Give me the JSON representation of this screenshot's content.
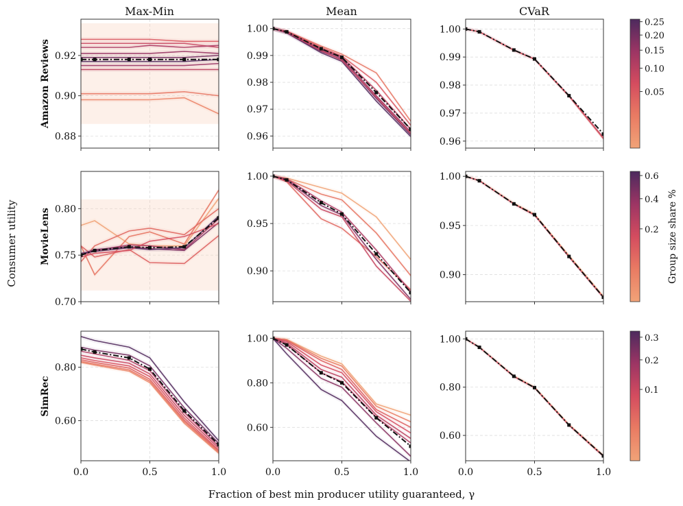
{
  "figure": {
    "xlabel": "Fraction of best min producer utility guaranteed, γ",
    "ylabel": "Consumer utility",
    "colorbar_label": "Group size share %",
    "columns": [
      "Max-Min",
      "Mean",
      "CVaR"
    ],
    "rows": [
      "Amazon Reviews",
      "MovieLens",
      "SimRec"
    ],
    "colors": {
      "light": "#f1a378",
      "mid": "#dc4b5c",
      "dark": "#4d2a5e",
      "mean_line": "#111111"
    }
  },
  "chart_data": [
    {
      "id": "amazon-maxmin",
      "type": "line",
      "row": "Amazon Reviews",
      "col": "Max-Min",
      "xlim": [
        0,
        1
      ],
      "ylim": [
        0.874,
        0.938
      ],
      "yticks": [
        0.88,
        0.9,
        0.92
      ],
      "ytick_labels": [
        "0.88",
        "0.90",
        "0.92"
      ],
      "x": [
        0,
        0.1,
        0.35,
        0.5,
        0.75,
        1.0
      ],
      "mean": [
        0.918,
        0.918,
        0.918,
        0.918,
        0.918,
        0.918
      ],
      "band": [
        0.886,
        0.936
      ],
      "series": [
        {
          "values": [
            0.928,
            0.928,
            0.928,
            0.928,
            0.927,
            0.927
          ],
          "c": 0.05
        },
        {
          "values": [
            0.926,
            0.926,
            0.926,
            0.926,
            0.926,
            0.924
          ],
          "c": 0.08
        },
        {
          "values": [
            0.924,
            0.924,
            0.924,
            0.925,
            0.924,
            0.925
          ],
          "c": 0.12
        },
        {
          "values": [
            0.921,
            0.921,
            0.921,
            0.921,
            0.922,
            0.921
          ],
          "c": 0.15
        },
        {
          "values": [
            0.919,
            0.919,
            0.919,
            0.919,
            0.919,
            0.92
          ],
          "c": 0.2
        },
        {
          "values": [
            0.917,
            0.917,
            0.917,
            0.917,
            0.917,
            0.918
          ],
          "c": 0.25
        },
        {
          "values": [
            0.915,
            0.915,
            0.915,
            0.915,
            0.915,
            0.916
          ],
          "c": 0.15
        },
        {
          "values": [
            0.913,
            0.913,
            0.913,
            0.913,
            0.913,
            0.913
          ],
          "c": 0.1
        },
        {
          "values": [
            0.901,
            0.901,
            0.901,
            0.901,
            0.902,
            0.9
          ],
          "c": 0.02
        },
        {
          "values": [
            0.898,
            0.898,
            0.898,
            0.898,
            0.899,
            0.891
          ],
          "c": 0.01
        }
      ]
    },
    {
      "id": "amazon-mean",
      "type": "line",
      "row": "Amazon Reviews",
      "col": "Mean",
      "xlim": [
        0,
        1
      ],
      "ylim": [
        0.9555,
        1.0035
      ],
      "yticks": [
        0.96,
        0.97,
        0.98,
        0.99,
        1.0
      ],
      "ytick_labels": [
        "0.96",
        "0.97",
        "0.98",
        "0.99",
        "1.00"
      ],
      "x": [
        0,
        0.1,
        0.35,
        0.5,
        0.75,
        1.0
      ],
      "mean": [
        1.0,
        0.9988,
        0.9925,
        0.9893,
        0.9762,
        0.9625
      ],
      "series": [
        {
          "values": [
            1.0,
            0.9991,
            0.9935,
            0.9905,
            0.9835,
            0.9655
          ],
          "c": 0.02
        },
        {
          "values": [
            1.0,
            0.999,
            0.993,
            0.9898,
            0.98,
            0.964
          ],
          "c": 0.05
        },
        {
          "values": [
            1.0,
            0.9988,
            0.9924,
            0.9895,
            0.977,
            0.9625
          ],
          "c": 0.1
        },
        {
          "values": [
            1.0,
            0.9987,
            0.992,
            0.989,
            0.975,
            0.9615
          ],
          "c": 0.15
        },
        {
          "values": [
            1.0,
            0.9985,
            0.9915,
            0.9885,
            0.974,
            0.9605
          ],
          "c": 0.2
        },
        {
          "values": [
            1.0,
            0.9984,
            0.991,
            0.9878,
            0.973,
            0.9598
          ],
          "c": 0.25
        },
        {
          "values": [
            1.0,
            0.9986,
            0.9918,
            0.9882,
            0.9745,
            0.961
          ],
          "c": 0.08
        }
      ]
    },
    {
      "id": "amazon-cvar",
      "type": "line",
      "row": "Amazon Reviews",
      "col": "CVaR",
      "xlim": [
        0,
        1
      ],
      "ylim": [
        0.9575,
        1.0035
      ],
      "yticks": [
        0.96,
        0.97,
        0.98,
        0.99,
        1.0
      ],
      "ytick_labels": [
        "0.96",
        "0.97",
        "0.98",
        "0.99",
        "1.00"
      ],
      "x": [
        0,
        0.1,
        0.35,
        0.5,
        0.75,
        1.0
      ],
      "mean": [
        1.0,
        0.999,
        0.9925,
        0.9893,
        0.9762,
        0.9625
      ],
      "series": [
        {
          "values": [
            1.0,
            0.999,
            0.9925,
            0.9893,
            0.9762,
            0.9612
          ],
          "c": 0.1
        },
        {
          "values": [
            1.0,
            0.999,
            0.9924,
            0.9892,
            0.976,
            0.9608
          ],
          "c": 0.05
        }
      ]
    },
    {
      "id": "movielens-maxmin",
      "type": "line",
      "row": "MovieLens",
      "col": "Max-Min",
      "xlim": [
        0,
        1
      ],
      "ylim": [
        0.7,
        0.84
      ],
      "yticks": [
        0.7,
        0.75,
        0.8
      ],
      "ytick_labels": [
        "0.70",
        "0.75",
        "0.80"
      ],
      "x": [
        0,
        0.1,
        0.35,
        0.5,
        0.75,
        1.0
      ],
      "mean": [
        0.75,
        0.755,
        0.759,
        0.758,
        0.759,
        0.79
      ],
      "band": [
        0.712,
        0.81
      ],
      "series": [
        {
          "values": [
            0.782,
            0.787,
            0.762,
            0.76,
            0.76,
            0.811
          ],
          "c": 0.0
        },
        {
          "values": [
            0.76,
            0.729,
            0.77,
            0.775,
            0.762,
            0.82
          ],
          "c": 0.05
        },
        {
          "values": [
            0.743,
            0.76,
            0.776,
            0.779,
            0.772,
            0.8
          ],
          "c": 0.08
        },
        {
          "values": [
            0.76,
            0.748,
            0.756,
            0.742,
            0.741,
            0.771
          ],
          "c": 0.1
        },
        {
          "values": [
            0.75,
            0.755,
            0.761,
            0.76,
            0.756,
            0.789
          ],
          "c": 0.3
        },
        {
          "values": [
            0.751,
            0.756,
            0.759,
            0.757,
            0.755,
            0.785
          ],
          "c": 0.45
        },
        {
          "values": [
            0.752,
            0.754,
            0.758,
            0.756,
            0.758,
            0.792
          ],
          "c": 0.6
        },
        {
          "values": [
            0.748,
            0.752,
            0.755,
            0.765,
            0.77,
            0.784
          ],
          "c": 0.15
        }
      ]
    },
    {
      "id": "movielens-mean",
      "type": "line",
      "row": "MovieLens",
      "col": "Mean",
      "xlim": [
        0,
        1
      ],
      "ylim": [
        0.8675,
        1.005
      ],
      "yticks": [
        0.9,
        0.95,
        1.0
      ],
      "ytick_labels": [
        "0.90",
        "0.95",
        "1.00"
      ],
      "x": [
        0,
        0.1,
        0.35,
        0.5,
        0.75,
        1.0
      ],
      "mean": [
        1.0,
        0.996,
        0.972,
        0.96,
        0.918,
        0.877
      ],
      "series": [
        {
          "values": [
            1.0,
            0.998,
            0.988,
            0.982,
            0.957,
            0.912
          ],
          "c": 0.0
        },
        {
          "values": [
            1.0,
            0.997,
            0.981,
            0.975,
            0.94,
            0.895
          ],
          "c": 0.05
        },
        {
          "values": [
            1.0,
            0.994,
            0.955,
            0.945,
            0.915,
            0.88
          ],
          "c": 0.08
        },
        {
          "values": [
            1.0,
            0.997,
            0.974,
            0.962,
            0.922,
            0.878
          ],
          "c": 0.3
        },
        {
          "values": [
            1.0,
            0.996,
            0.969,
            0.959,
            0.912,
            0.87
          ],
          "c": 0.45
        },
        {
          "values": [
            1.0,
            0.995,
            0.965,
            0.957,
            0.905,
            0.868
          ],
          "c": 0.2
        }
      ]
    },
    {
      "id": "movielens-cvar",
      "type": "line",
      "row": "MovieLens",
      "col": "CVaR",
      "xlim": [
        0,
        1
      ],
      "ylim": [
        0.8725,
        1.005
      ],
      "yticks": [
        0.9,
        0.95,
        1.0
      ],
      "ytick_labels": [
        "0.90",
        "0.95",
        "1.00"
      ],
      "x": [
        0,
        0.1,
        0.35,
        0.5,
        0.75,
        1.0
      ],
      "mean": [
        1.0,
        0.9955,
        0.972,
        0.961,
        0.9185,
        0.877
      ],
      "series": [
        {
          "values": [
            1.0,
            0.9958,
            0.9725,
            0.9615,
            0.9195,
            0.8778
          ],
          "c": 0.0
        },
        {
          "values": [
            1.0,
            0.9955,
            0.9718,
            0.9605,
            0.918,
            0.8765
          ],
          "c": 0.2
        }
      ]
    },
    {
      "id": "simrec-maxmin",
      "type": "line",
      "row": "SimRec",
      "col": "Max-Min",
      "xlim": [
        0,
        1
      ],
      "ylim": [
        0.45,
        0.935
      ],
      "yticks": [
        0.6,
        0.8
      ],
      "ytick_labels": [
        "0.60",
        "0.80"
      ],
      "x": [
        0,
        0.1,
        0.35,
        0.5,
        0.75,
        1.0
      ],
      "mean": [
        0.868,
        0.857,
        0.835,
        0.793,
        0.637,
        0.51
      ],
      "series": [
        {
          "values": [
            0.915,
            0.9,
            0.875,
            0.835,
            0.67,
            0.525
          ],
          "c": 0.32
        },
        {
          "values": [
            0.875,
            0.864,
            0.845,
            0.805,
            0.648,
            0.515
          ],
          "c": 0.25
        },
        {
          "values": [
            0.86,
            0.85,
            0.826,
            0.787,
            0.631,
            0.504
          ],
          "c": 0.15
        },
        {
          "values": [
            0.845,
            0.835,
            0.815,
            0.775,
            0.62,
            0.497
          ],
          "c": 0.1
        },
        {
          "values": [
            0.835,
            0.825,
            0.805,
            0.765,
            0.61,
            0.49
          ],
          "c": 0.07
        },
        {
          "values": [
            0.828,
            0.818,
            0.797,
            0.755,
            0.602,
            0.486
          ],
          "c": 0.05
        },
        {
          "values": [
            0.822,
            0.812,
            0.79,
            0.748,
            0.596,
            0.482
          ],
          "c": 0.03
        },
        {
          "values": [
            0.818,
            0.808,
            0.785,
            0.742,
            0.59,
            0.478
          ],
          "c": 0.01
        }
      ]
    },
    {
      "id": "simrec-mean",
      "type": "line",
      "row": "SimRec",
      "col": "Mean",
      "xlim": [
        0,
        1
      ],
      "ylim": [
        0.45,
        1.032
      ],
      "yticks": [
        0.6,
        0.8,
        1.0
      ],
      "ytick_labels": [
        "0.60",
        "0.80",
        "1.00"
      ],
      "x": [
        0,
        0.1,
        0.35,
        0.5,
        0.75,
        1.0
      ],
      "mean": [
        1.0,
        0.97,
        0.845,
        0.8,
        0.643,
        0.515
      ],
      "series": [
        {
          "values": [
            1.0,
            0.995,
            0.92,
            0.885,
            0.705,
            0.655
          ],
          "c": 0.0
        },
        {
          "values": [
            1.0,
            0.993,
            0.91,
            0.875,
            0.695,
            0.625
          ],
          "c": 0.02
        },
        {
          "values": [
            1.0,
            0.99,
            0.9,
            0.86,
            0.68,
            0.6
          ],
          "c": 0.05
        },
        {
          "values": [
            1.0,
            0.985,
            0.88,
            0.845,
            0.67,
            0.575
          ],
          "c": 0.08
        },
        {
          "values": [
            1.0,
            0.978,
            0.86,
            0.825,
            0.655,
            0.55
          ],
          "c": 0.12
        },
        {
          "values": [
            1.0,
            0.972,
            0.845,
            0.805,
            0.645,
            0.53
          ],
          "c": 0.15
        },
        {
          "values": [
            1.0,
            0.955,
            0.82,
            0.78,
            0.62,
            0.47
          ],
          "c": 0.22
        },
        {
          "values": [
            1.0,
            0.93,
            0.77,
            0.72,
            0.56,
            0.445
          ],
          "c": 0.32
        }
      ]
    },
    {
      "id": "simrec-cvar",
      "type": "line",
      "row": "SimRec",
      "col": "CVaR",
      "xlim": [
        0,
        1
      ],
      "ylim": [
        0.495,
        1.032
      ],
      "yticks": [
        0.6,
        0.8,
        1.0
      ],
      "ytick_labels": [
        "0.60",
        "0.80",
        "1.00"
      ],
      "x": [
        0,
        0.1,
        0.35,
        0.5,
        0.75,
        1.0
      ],
      "mean": [
        1.0,
        0.965,
        0.845,
        0.798,
        0.643,
        0.515
      ],
      "series": [
        {
          "values": [
            1.0,
            0.966,
            0.846,
            0.8,
            0.645,
            0.517
          ],
          "c": 0.0
        },
        {
          "values": [
            1.0,
            0.965,
            0.844,
            0.797,
            0.642,
            0.513
          ],
          "c": 0.1
        }
      ]
    }
  ],
  "colorbars": [
    {
      "row": "Amazon Reviews",
      "range": [
        0.0,
        0.26
      ],
      "scale": "sqrt",
      "ticks": [
        0.05,
        0.1,
        0.15,
        0.2,
        0.25
      ],
      "tick_labels": [
        "0.05",
        "0.10",
        "0.15",
        "0.20",
        "0.25"
      ]
    },
    {
      "row": "MovieLens",
      "range": [
        0.0,
        0.64
      ],
      "scale": "sqrt",
      "ticks": [
        0.2,
        0.4,
        0.6
      ],
      "tick_labels": [
        "0.2",
        "0.4",
        "0.6"
      ]
    },
    {
      "row": "SimRec",
      "range": [
        0.0,
        0.33
      ],
      "scale": "sqrt",
      "ticks": [
        0.1,
        0.2,
        0.3
      ],
      "tick_labels": [
        "0.1",
        "0.2",
        "0.3"
      ]
    }
  ],
  "xticks": [
    0.0,
    0.5,
    1.0
  ],
  "xtick_labels": [
    "0.0",
    "0.5",
    "1.0"
  ]
}
